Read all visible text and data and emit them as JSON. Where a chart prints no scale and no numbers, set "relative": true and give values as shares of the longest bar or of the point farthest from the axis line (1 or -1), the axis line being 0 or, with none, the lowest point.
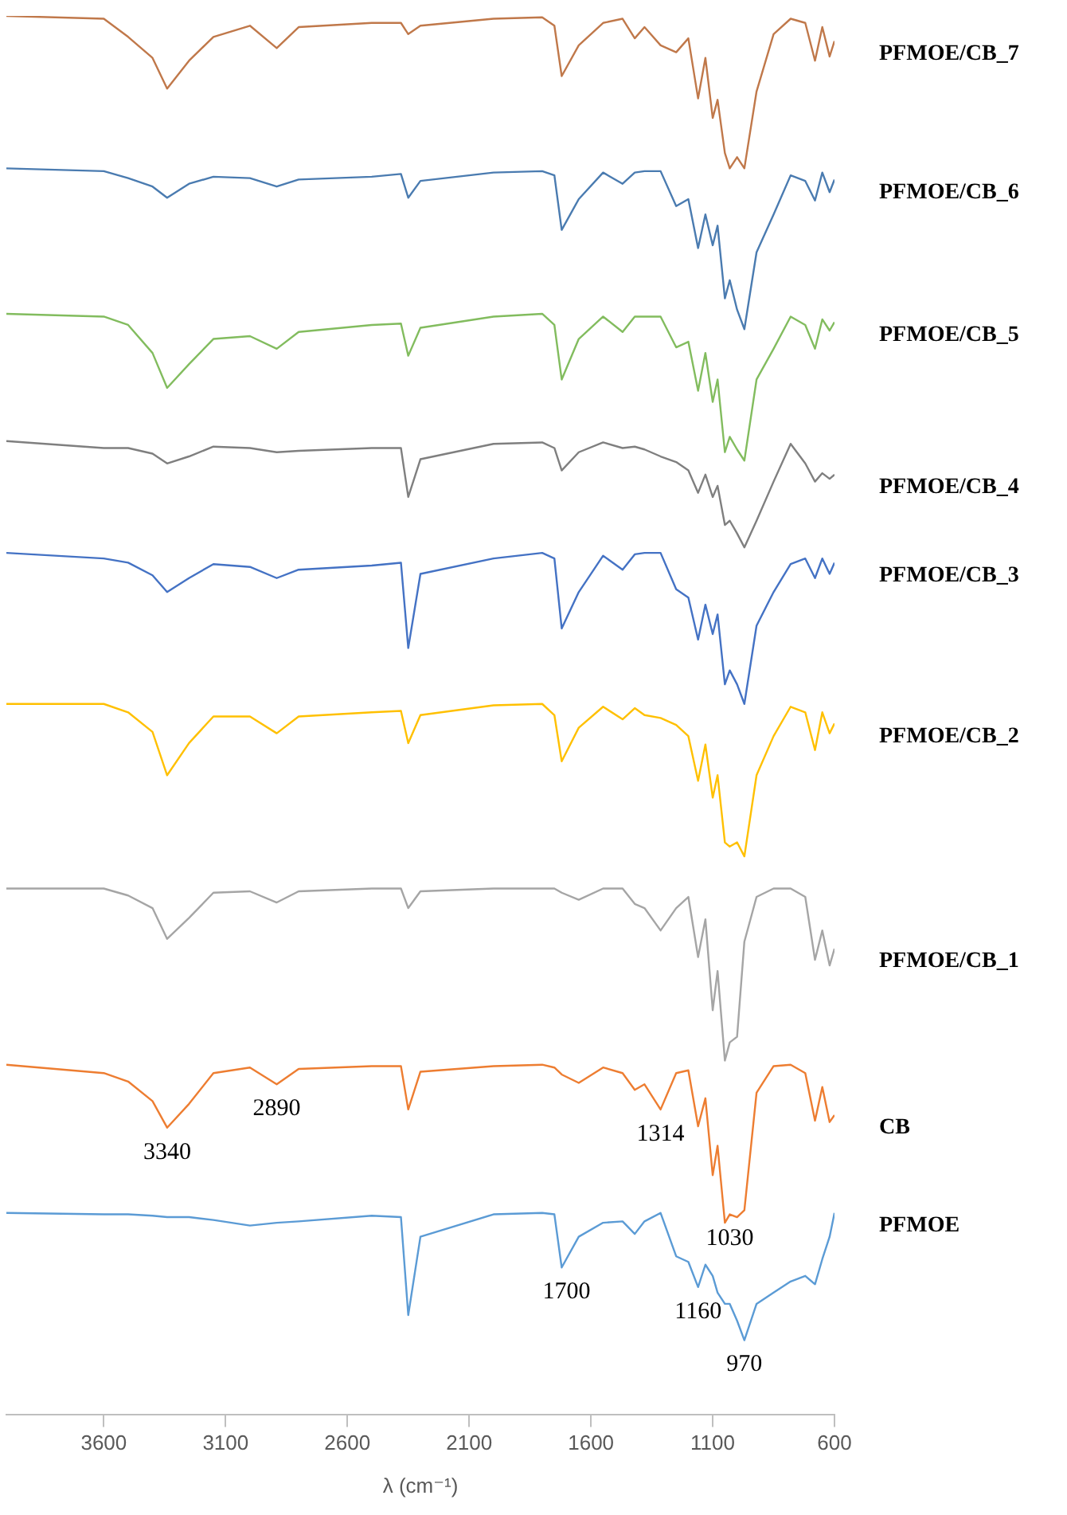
{
  "chart_data": {
    "type": "line",
    "relative": true,
    "xlabel": "λ (cm⁻¹)",
    "xlim": [
      4000,
      600
    ],
    "xticks": [
      3600,
      3100,
      2600,
      2100,
      1600,
      1100,
      600
    ],
    "grid": false,
    "legend": false,
    "x": [
      4000,
      3600,
      3500,
      3400,
      3340,
      3250,
      3150,
      3000,
      2890,
      2800,
      2500,
      2380,
      2350,
      2300,
      2000,
      1800,
      1750,
      1720,
      1650,
      1550,
      1470,
      1420,
      1380,
      1314,
      1250,
      1200,
      1160,
      1130,
      1100,
      1080,
      1050,
      1030,
      1000,
      970,
      920,
      850,
      780,
      720,
      680,
      650,
      620,
      600
    ],
    "series": [
      {
        "name": "PFMOE/CB_7",
        "color": "#c0784a",
        "values": [
          1.0,
          0.998,
          0.985,
          0.97,
          0.948,
          0.968,
          0.985,
          0.993,
          0.977,
          0.992,
          0.995,
          0.995,
          0.987,
          0.993,
          0.998,
          0.999,
          0.993,
          0.957,
          0.979,
          0.995,
          0.998,
          0.984,
          0.992,
          0.979,
          0.974,
          0.984,
          0.941,
          0.97,
          0.927,
          0.94,
          0.902,
          0.891,
          0.899,
          0.891,
          0.946,
          0.987,
          0.998,
          0.995,
          0.968,
          0.992,
          0.971,
          0.982
        ]
      },
      {
        "name": "PFMOE/CB_6",
        "color": "#4a7bb0",
        "values": [
          0.891,
          0.889,
          0.884,
          0.878,
          0.87,
          0.88,
          0.885,
          0.884,
          0.878,
          0.883,
          0.885,
          0.887,
          0.87,
          0.882,
          0.888,
          0.889,
          0.886,
          0.847,
          0.869,
          0.888,
          0.88,
          0.888,
          0.889,
          0.889,
          0.864,
          0.869,
          0.834,
          0.858,
          0.836,
          0.85,
          0.798,
          0.811,
          0.79,
          0.776,
          0.831,
          0.858,
          0.886,
          0.882,
          0.868,
          0.888,
          0.874,
          0.883
        ]
      },
      {
        "name": "PFMOE/CB_5",
        "color": "#82bc5e",
        "values": [
          0.787,
          0.785,
          0.779,
          0.759,
          0.734,
          0.751,
          0.769,
          0.771,
          0.762,
          0.774,
          0.779,
          0.78,
          0.757,
          0.777,
          0.785,
          0.787,
          0.779,
          0.74,
          0.769,
          0.785,
          0.774,
          0.785,
          0.785,
          0.785,
          0.763,
          0.767,
          0.732,
          0.759,
          0.724,
          0.74,
          0.688,
          0.699,
          0.69,
          0.682,
          0.74,
          0.762,
          0.785,
          0.779,
          0.762,
          0.783,
          0.775,
          0.781
        ]
      },
      {
        "name": "PFMOE/CB_4",
        "color": "#7f7f7f",
        "values": [
          0.696,
          0.691,
          0.691,
          0.687,
          0.68,
          0.685,
          0.692,
          0.691,
          0.688,
          0.689,
          0.691,
          0.691,
          0.656,
          0.683,
          0.694,
          0.695,
          0.691,
          0.675,
          0.688,
          0.695,
          0.691,
          0.692,
          0.69,
          0.685,
          0.681,
          0.675,
          0.659,
          0.672,
          0.656,
          0.664,
          0.636,
          0.639,
          0.63,
          0.62,
          0.639,
          0.667,
          0.694,
          0.68,
          0.667,
          0.673,
          0.669,
          0.672
        ]
      },
      {
        "name": "PFMOE/CB_3",
        "color": "#4472c4",
        "values": [
          0.616,
          0.612,
          0.609,
          0.6,
          0.588,
          0.598,
          0.608,
          0.606,
          0.598,
          0.604,
          0.607,
          0.609,
          0.548,
          0.601,
          0.612,
          0.616,
          0.612,
          0.562,
          0.588,
          0.614,
          0.604,
          0.615,
          0.616,
          0.616,
          0.59,
          0.584,
          0.554,
          0.579,
          0.558,
          0.572,
          0.522,
          0.532,
          0.522,
          0.508,
          0.564,
          0.588,
          0.608,
          0.612,
          0.598,
          0.612,
          0.601,
          0.609
        ]
      },
      {
        "name": "PFMOE/CB_2",
        "color": "#ffc000",
        "values": [
          0.508,
          0.508,
          0.502,
          0.488,
          0.457,
          0.48,
          0.499,
          0.499,
          0.487,
          0.499,
          0.502,
          0.503,
          0.48,
          0.5,
          0.507,
          0.508,
          0.5,
          0.467,
          0.491,
          0.506,
          0.497,
          0.505,
          0.5,
          0.498,
          0.493,
          0.485,
          0.453,
          0.479,
          0.441,
          0.457,
          0.409,
          0.406,
          0.409,
          0.399,
          0.457,
          0.485,
          0.506,
          0.502,
          0.475,
          0.502,
          0.487,
          0.494
        ]
      },
      {
        "name": "PFMOE/CB_1",
        "color": "#a5a5a5",
        "values": [
          0.376,
          0.376,
          0.371,
          0.362,
          0.34,
          0.355,
          0.373,
          0.374,
          0.366,
          0.374,
          0.376,
          0.376,
          0.362,
          0.374,
          0.376,
          0.376,
          0.376,
          0.373,
          0.368,
          0.376,
          0.376,
          0.365,
          0.362,
          0.346,
          0.362,
          0.37,
          0.327,
          0.354,
          0.289,
          0.317,
          0.253,
          0.266,
          0.27,
          0.338,
          0.37,
          0.376,
          0.376,
          0.37,
          0.325,
          0.346,
          0.321,
          0.333
        ]
      },
      {
        "name": "CB",
        "color": "#ed7d31",
        "values": [
          0.25,
          0.244,
          0.238,
          0.224,
          0.205,
          0.222,
          0.244,
          0.248,
          0.236,
          0.247,
          0.249,
          0.249,
          0.218,
          0.245,
          0.249,
          0.25,
          0.248,
          0.243,
          0.237,
          0.248,
          0.244,
          0.232,
          0.236,
          0.218,
          0.244,
          0.246,
          0.206,
          0.226,
          0.171,
          0.192,
          0.137,
          0.143,
          0.141,
          0.146,
          0.23,
          0.249,
          0.25,
          0.244,
          0.21,
          0.234,
          0.209,
          0.214
        ]
      },
      {
        "name": "PFMOE",
        "color": "#5b9bd5",
        "values": [
          0.144,
          0.143,
          0.143,
          0.142,
          0.141,
          0.141,
          0.139,
          0.135,
          0.137,
          0.138,
          0.142,
          0.141,
          0.071,
          0.127,
          0.143,
          0.144,
          0.143,
          0.105,
          0.127,
          0.137,
          0.138,
          0.129,
          0.138,
          0.144,
          0.113,
          0.109,
          0.091,
          0.107,
          0.099,
          0.087,
          0.079,
          0.079,
          0.067,
          0.053,
          0.079,
          0.087,
          0.095,
          0.099,
          0.093,
          0.111,
          0.127,
          0.144
        ]
      }
    ],
    "annotations": [
      {
        "text": "3340",
        "x": 3340,
        "y": 0.205
      },
      {
        "text": "2890",
        "x": 2890,
        "y": 0.236
      },
      {
        "text": "1314",
        "x": 1314,
        "y": 0.218
      },
      {
        "text": "1030",
        "x": 1030,
        "y": 0.143
      },
      {
        "text": "1700",
        "x": 1700,
        "y": 0.105
      },
      {
        "text": "1160",
        "x": 1160,
        "y": 0.091
      },
      {
        "text": "970",
        "x": 970,
        "y": 0.053
      }
    ]
  }
}
